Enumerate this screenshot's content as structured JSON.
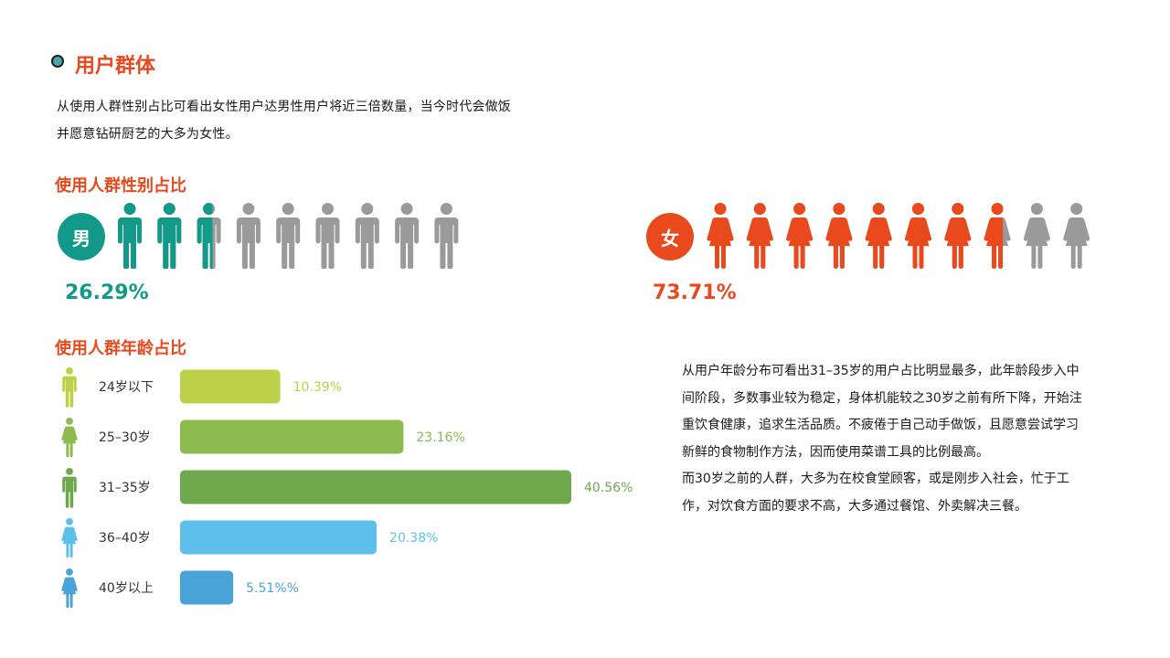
{
  "section": {
    "title": "用户群体",
    "intro_line1": "从使用人群性别占比可看出女性用户达男性用户将近三倍数量，当今时代会做饭",
    "intro_line2": "并愿意钻研厨艺的大多为女性。"
  },
  "gender": {
    "title": "使用人群性别占比",
    "male_label": "男",
    "female_label": "女",
    "male_pct": "26.29%",
    "female_pct": "73.71%",
    "male_ratio": 0.2629,
    "female_ratio": 0.7371,
    "colors": {
      "male": "#13998a",
      "female": "#e8491d",
      "inactive": "#9a9a9a"
    }
  },
  "age": {
    "title": "使用人群年龄占比",
    "description": [
      "从用户年龄分布可看出31–35岁的用户占比明显最多，此年龄段步入中间阶段，多数事业较为稳定，身体机能较之30岁之前有所下降，开始注重饮食健康，追求生活品质。不疲倦于自己动手做饭，且愿意尝试学习新鲜的食物制作方法，因而使用菜谱工具的比例最高。",
      "而30岁之前的人群，大多为在校食堂顾客，或是刚步入社会，忙于工作，对饮食方面的要求不高，大多通过餐馆、外卖解决三餐。"
    ]
  },
  "chart_data": [
    {
      "type": "pictograph",
      "title": "使用人群性别占比",
      "categories": [
        "男",
        "女"
      ],
      "values": [
        26.29,
        73.71
      ],
      "value_labels": [
        "26.29%",
        "73.71%"
      ],
      "icons_per_category": 10
    },
    {
      "type": "bar",
      "orientation": "horizontal",
      "title": "使用人群年龄占比",
      "categories": [
        "24岁以下",
        "25–30岁",
        "31–35岁",
        "36–40岁",
        "40岁以上"
      ],
      "values": [
        10.39,
        23.16,
        40.56,
        20.38,
        5.51
      ],
      "value_labels": [
        "10.39%",
        "23.16%",
        "40.56%",
        "20.38%",
        "5.51%%"
      ],
      "icons": [
        "male",
        "female",
        "male",
        "female",
        "female"
      ],
      "colors": [
        "#bcd04a",
        "#8dbb4f",
        "#6fa84d",
        "#5ec0ea",
        "#4aa3d6"
      ]
    }
  ]
}
